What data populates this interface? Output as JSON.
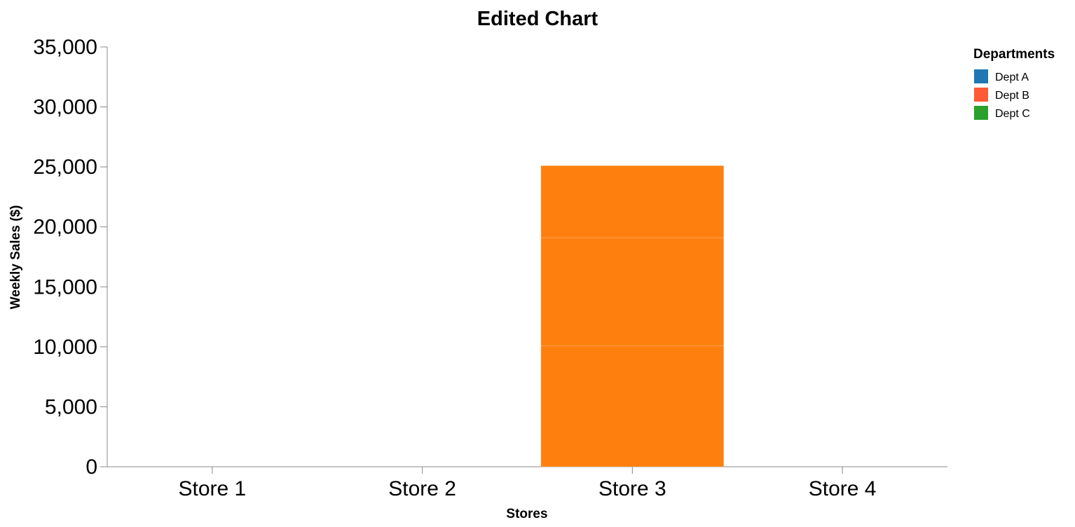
{
  "chart_data": {
    "type": "bar",
    "stacked": true,
    "title": "Edited Chart",
    "xlabel": "Stores",
    "ylabel": "Weekly Sales ($)",
    "categories": [
      "Store 1",
      "Store 2",
      "Store 3",
      "Store 4"
    ],
    "ylim": [
      0,
      35000
    ],
    "yticks": [
      0,
      5000,
      10000,
      15000,
      20000,
      25000,
      30000,
      35000
    ],
    "ytick_labels": [
      "0",
      "5,000",
      "10,000",
      "15,000",
      "20,000",
      "25,000",
      "30,000",
      "35,000"
    ],
    "grid": false,
    "legend": {
      "title": "Departments",
      "position": "top-right",
      "entries": [
        {
          "label": "Dept A",
          "color": "#1f77b4"
        },
        {
          "label": "Dept B",
          "color": "#ff5a36"
        },
        {
          "label": "Dept C",
          "color": "#2ca02c"
        }
      ]
    },
    "bar_color": "#ff7f0e",
    "series": [
      {
        "values": [
          0,
          0,
          10100,
          0
        ]
      },
      {
        "values": [
          0,
          0,
          9000,
          0
        ]
      },
      {
        "values": [
          0,
          0,
          6000,
          0
        ]
      }
    ]
  }
}
